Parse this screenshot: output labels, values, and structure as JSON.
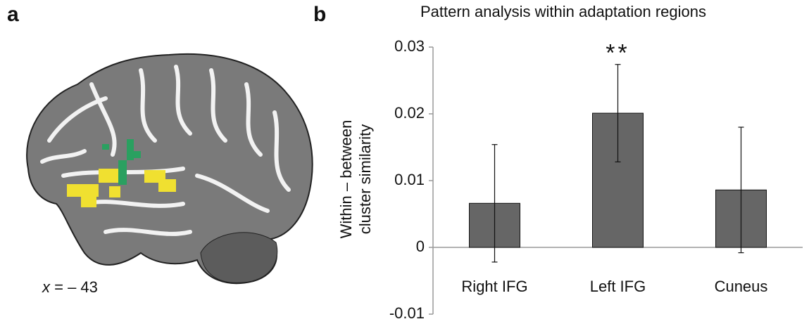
{
  "panel_labels": [
    "a",
    "b"
  ],
  "slice_label": {
    "variable": "x",
    "text": "= – 43"
  },
  "chart_data": {
    "type": "bar",
    "title": "Pattern analysis within adaptation regions",
    "ylabel": [
      "Within – between",
      "cluster similarity"
    ],
    "categories": [
      "Right IFG",
      "Left IFG",
      "Cuneus"
    ],
    "values": [
      0.0066,
      0.0201,
      0.0086
    ],
    "errors": [
      0.0088,
      0.0073,
      0.0094
    ],
    "color": "#666666",
    "ylim": [
      -0.01,
      0.03
    ],
    "yticks": [
      -0.01,
      0,
      0.01,
      0.02,
      0.03
    ],
    "annotations": [
      {
        "text": "**",
        "category": "Left IFG"
      }
    ]
  }
}
